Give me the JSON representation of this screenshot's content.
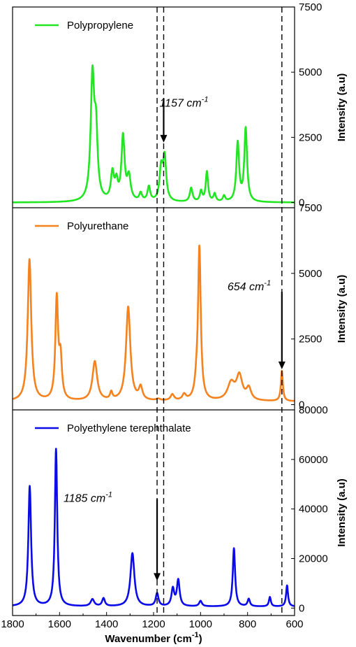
{
  "chart_data": {
    "type": "line",
    "xlabel": "Wavenumber (cm",
    "xlabel_sup": "-1",
    "xlabel_close": ")",
    "xlim": [
      1800,
      600
    ],
    "x_ticks": [
      1800,
      1600,
      1400,
      1200,
      1000,
      800,
      600
    ],
    "x_tick_labels": [
      "1800",
      "1600",
      "1400",
      "1200",
      "1000",
      "800",
      "600"
    ],
    "reference_lines": [
      1185,
      1157,
      654
    ],
    "panels": [
      {
        "series_name": "Polypropylene",
        "color": "#22e622",
        "ylabel": "Intensity (a.u)",
        "ylim": [
          -200,
          7500
        ],
        "y_ticks": [
          0,
          2500,
          5000,
          7500
        ],
        "y_tick_labels": [
          "0",
          "2500",
          "5000",
          "7500"
        ],
        "baseline": 0,
        "peaks": [
          {
            "x": 1460,
            "y": 4700,
            "w": 9
          },
          {
            "x": 1445,
            "y": 2400,
            "w": 8
          },
          {
            "x": 1375,
            "y": 1050,
            "w": 8
          },
          {
            "x": 1358,
            "y": 650,
            "w": 7
          },
          {
            "x": 1330,
            "y": 2450,
            "w": 8
          },
          {
            "x": 1305,
            "y": 900,
            "w": 9
          },
          {
            "x": 1255,
            "y": 300,
            "w": 7
          },
          {
            "x": 1220,
            "y": 550,
            "w": 7
          },
          {
            "x": 1168,
            "y": 1200,
            "w": 8
          },
          {
            "x": 1153,
            "y": 1650,
            "w": 8
          },
          {
            "x": 1040,
            "y": 530,
            "w": 7
          },
          {
            "x": 998,
            "y": 400,
            "w": 6
          },
          {
            "x": 973,
            "y": 1150,
            "w": 6
          },
          {
            "x": 940,
            "y": 300,
            "w": 6
          },
          {
            "x": 900,
            "y": 220,
            "w": 6
          },
          {
            "x": 842,
            "y": 2250,
            "w": 7
          },
          {
            "x": 808,
            "y": 2800,
            "w": 7
          }
        ],
        "legend_label": "Polypropylene",
        "annotation": {
          "text": "1157 cm",
          "sup": "-1",
          "x": 1157,
          "arrow_from": 4000,
          "arrow_to": 2300
        }
      },
      {
        "series_name": "Polyurethane",
        "color": "#f5821f",
        "ylabel": "Intensity (a.u)",
        "ylim": [
          -200,
          7500
        ],
        "y_ticks": [
          0,
          2500,
          5000,
          7500
        ],
        "y_tick_labels": [
          "0",
          "2500",
          "5000",
          "7500"
        ],
        "baseline": 120,
        "peaks": [
          {
            "x": 1728,
            "y": 5400,
            "w": 9
          },
          {
            "x": 1612,
            "y": 3850,
            "w": 7
          },
          {
            "x": 1596,
            "y": 1500,
            "w": 7
          },
          {
            "x": 1450,
            "y": 1500,
            "w": 12
          },
          {
            "x": 1380,
            "y": 280,
            "w": 6
          },
          {
            "x": 1308,
            "y": 3580,
            "w": 11
          },
          {
            "x": 1255,
            "y": 480,
            "w": 9
          },
          {
            "x": 1180,
            "y": 60,
            "w": 10
          },
          {
            "x": 1120,
            "y": 230,
            "w": 9
          },
          {
            "x": 1070,
            "y": 220,
            "w": 9
          },
          {
            "x": 1005,
            "y": 5800,
            "w": 7
          },
          {
            "x": 1018,
            "y": 400,
            "w": 8
          },
          {
            "x": 870,
            "y": 650,
            "w": 18
          },
          {
            "x": 835,
            "y": 920,
            "w": 15
          },
          {
            "x": 795,
            "y": 450,
            "w": 12
          },
          {
            "x": 654,
            "y": 1150,
            "w": 5
          }
        ],
        "legend_label": "Polyurethane",
        "annotation": {
          "text": "654 cm",
          "sup": "-1",
          "x": 654,
          "arrow_from": 4300,
          "arrow_to": 1350
        }
      },
      {
        "series_name": "Polyethylene terephthalate",
        "color": "#0b0be8",
        "ylabel": "Intensity (a.u)",
        "ylim": [
          -3000,
          80000
        ],
        "y_ticks": [
          0,
          20000,
          40000,
          60000,
          80000
        ],
        "y_tick_labels": [
          "0",
          "20000",
          "40000",
          "60000",
          "80000"
        ],
        "baseline": 600,
        "peaks": [
          {
            "x": 1727,
            "y": 48500,
            "w": 7
          },
          {
            "x": 1615,
            "y": 63500,
            "w": 6
          },
          {
            "x": 1460,
            "y": 2800,
            "w": 9
          },
          {
            "x": 1413,
            "y": 3200,
            "w": 7
          },
          {
            "x": 1290,
            "y": 21500,
            "w": 10
          },
          {
            "x": 1185,
            "y": 5200,
            "w": 7
          },
          {
            "x": 1118,
            "y": 7000,
            "w": 7
          },
          {
            "x": 1095,
            "y": 10500,
            "w": 7
          },
          {
            "x": 1000,
            "y": 2200,
            "w": 7
          },
          {
            "x": 858,
            "y": 23500,
            "w": 6
          },
          {
            "x": 795,
            "y": 3000,
            "w": 6
          },
          {
            "x": 705,
            "y": 3800,
            "w": 5
          },
          {
            "x": 632,
            "y": 8500,
            "w": 5
          }
        ],
        "legend_label": "Polyethylene terephthalate",
        "annotation": {
          "text": "1185 cm",
          "sup": "-1",
          "x": 1185,
          "arrow_from": 44000,
          "arrow_to": 11000
        }
      }
    ]
  }
}
